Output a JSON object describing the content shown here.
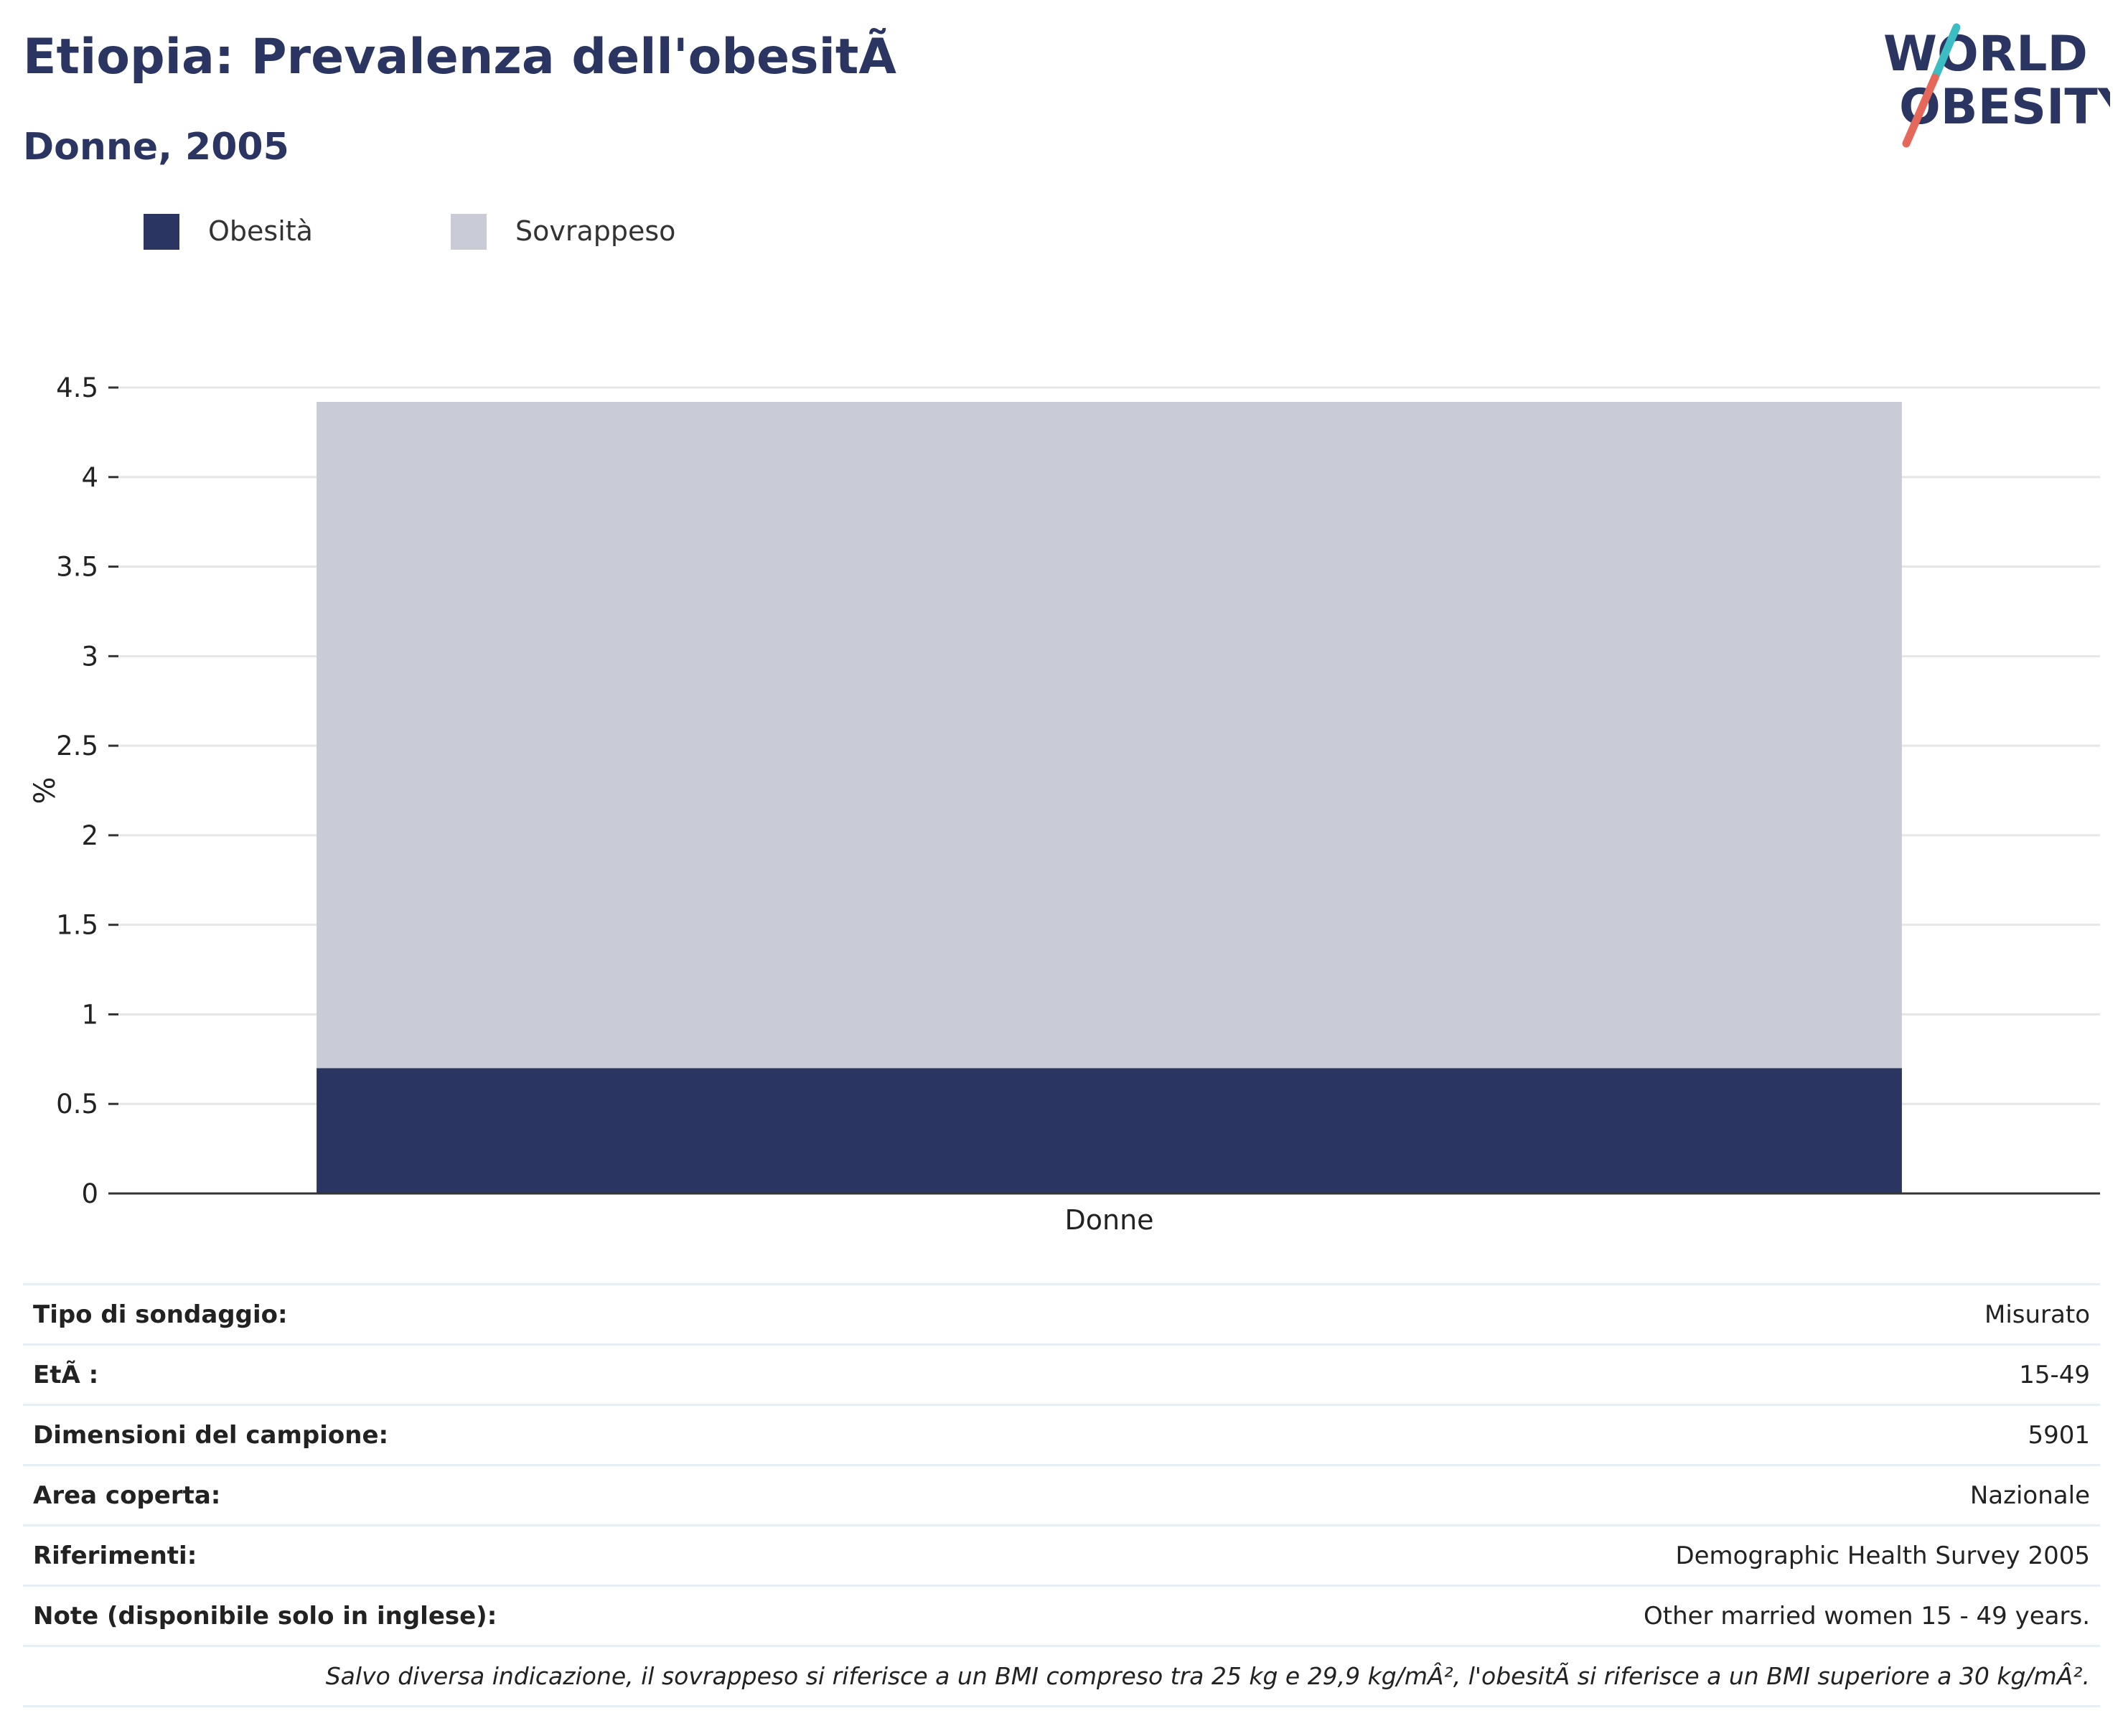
{
  "header": {
    "title": "Etiopia: Prevalenza dell'obesitÃ",
    "subtitle": "Donne, 2005"
  },
  "logo": {
    "line1": "WORLD",
    "line2": "OBESITY",
    "colors": {
      "text": "#2b3562",
      "slash_top": "#3cbcc3",
      "slash_bottom": "#e5685a"
    }
  },
  "legend": [
    {
      "label": "Obesità",
      "color": "#2b3562"
    },
    {
      "label": "Sovrappeso",
      "color": "#c9ccd7"
    }
  ],
  "chart_data": {
    "type": "bar",
    "stacked": true,
    "categories": [
      "Donne"
    ],
    "series": [
      {
        "name": "Obesità",
        "values": [
          0.7
        ],
        "color": "#2b3562"
      },
      {
        "name": "Sovrappeso",
        "values": [
          3.72
        ],
        "color": "#c9ccd7"
      }
    ],
    "ylabel": "%",
    "ylim": [
      0,
      4.5
    ],
    "yticks": [
      "0",
      "0.5",
      "1",
      "1.5",
      "2",
      "2.5",
      "3",
      "3.5",
      "4",
      "4.5"
    ],
    "grid": true,
    "legend_position": "top-left"
  },
  "info": {
    "rows": [
      {
        "label": "Tipo di sondaggio:",
        "value": "Misurato"
      },
      {
        "label": "EtÃ :",
        "value": "15-49"
      },
      {
        "label": "Dimensioni del campione:",
        "value": "5901"
      },
      {
        "label": "Area coperta:",
        "value": "Nazionale"
      },
      {
        "label": "Riferimenti:",
        "value": "Demographic Health Survey 2005"
      },
      {
        "label": "Note (disponibile solo in inglese):",
        "value": "Other married women 15 - 49 years."
      }
    ],
    "footnote": "Salvo diversa indicazione, il sovrappeso si riferisce a un BMI compreso tra 25 kg e 29,9 kg/mÂ², l'obesitÃ  si riferisce a un BMI superiore a 30 kg/mÂ²."
  }
}
